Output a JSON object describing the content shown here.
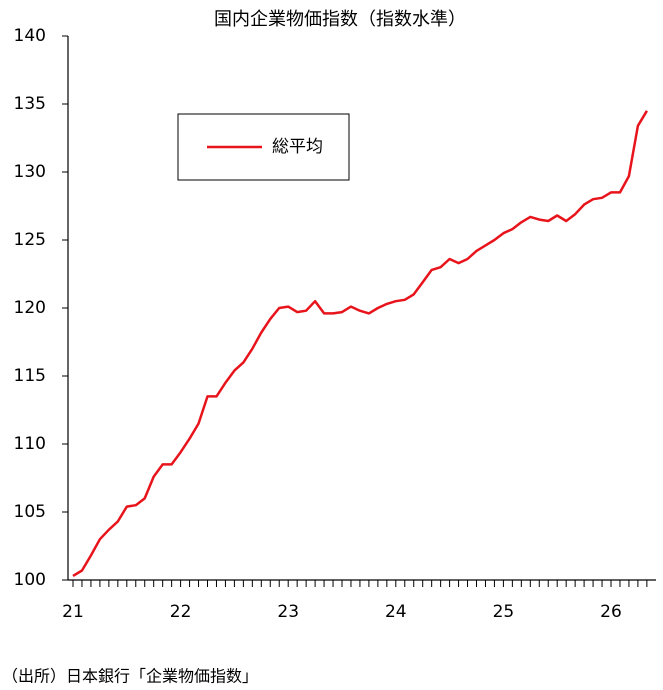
{
  "chart_data": {
    "type": "line",
    "title": "国内企業物価指数（指数水準）",
    "categories": [
      "21",
      null,
      null,
      null,
      null,
      null,
      null,
      null,
      null,
      null,
      null,
      null,
      "22",
      null,
      null,
      null,
      null,
      null,
      null,
      null,
      null,
      null,
      null,
      null,
      "23",
      null,
      null,
      null,
      null,
      null,
      null,
      null,
      null,
      null,
      null,
      null,
      "24",
      null,
      null,
      null,
      null,
      null,
      null,
      null,
      null,
      null,
      null,
      null,
      "25",
      null,
      null,
      null,
      null,
      null,
      null,
      null,
      null,
      null,
      null,
      null,
      "26",
      null,
      null,
      null,
      null
    ],
    "series": [
      {
        "name": "総平均",
        "color": "#e8141c",
        "values": [
          100.3,
          100.7,
          101.8,
          103.0,
          103.7,
          104.3,
          105.4,
          105.5,
          106.0,
          107.6,
          108.5,
          108.5,
          109.4,
          110.4,
          111.5,
          113.5,
          113.5,
          114.5,
          115.4,
          116.0,
          117.0,
          118.2,
          119.2,
          120.0,
          120.1,
          119.7,
          119.8,
          120.5,
          119.6,
          119.6,
          119.7,
          120.1,
          119.8,
          119.6,
          120.0,
          120.3,
          120.5,
          120.6,
          121.0,
          121.9,
          122.8,
          123.0,
          123.6,
          123.3,
          123.6,
          124.2,
          124.6,
          125.0,
          125.5,
          125.8,
          126.3,
          126.7,
          126.5,
          126.4,
          126.8,
          126.4,
          126.9,
          127.6,
          128.0,
          128.1,
          128.5,
          128.5,
          129.7,
          133.4,
          134.5
        ]
      }
    ],
    "ylim": [
      100,
      140
    ],
    "yticks": [
      100,
      105,
      110,
      115,
      120,
      125,
      130,
      135,
      140
    ],
    "grid": false,
    "legend": "upper left",
    "source": "（出所）日本銀行「企業物価指数」"
  }
}
